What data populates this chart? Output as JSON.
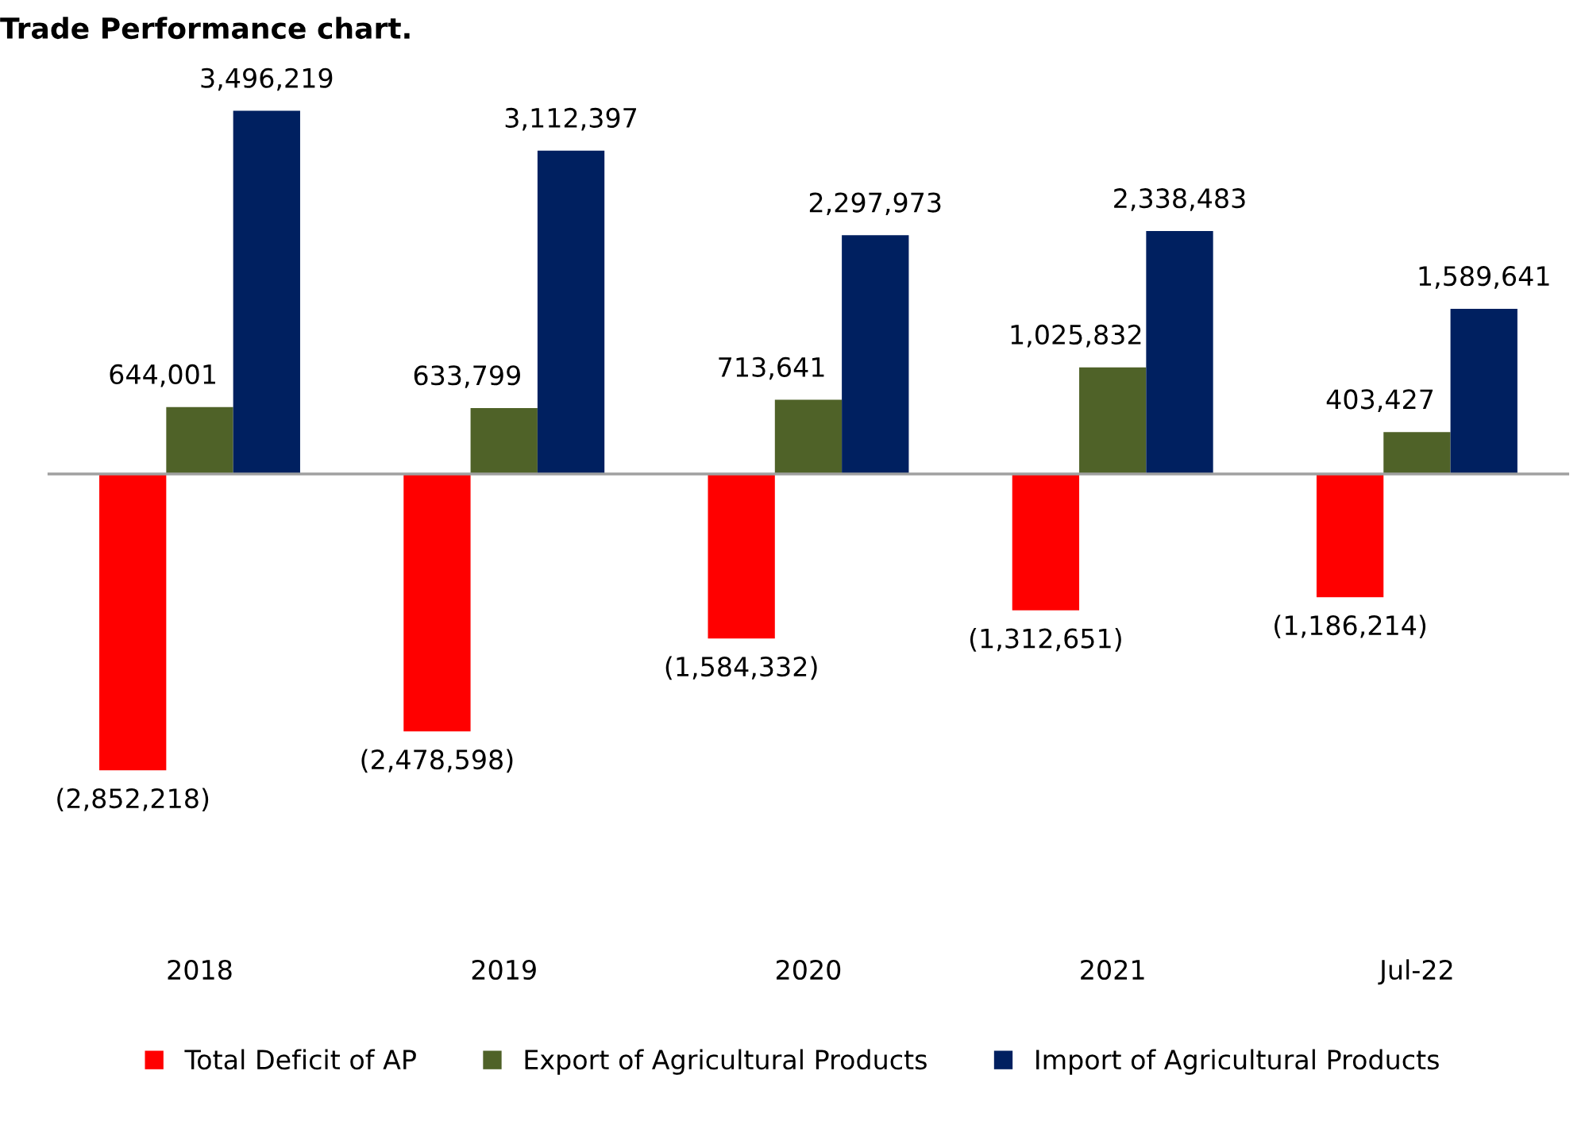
{
  "chart_data": {
    "type": "bar",
    "title": "Trade Performance chart.",
    "categories": [
      "2018",
      "2019",
      "2020",
      "2021",
      "Jul-22"
    ],
    "series": [
      {
        "name": "Total Deficit of AP",
        "color": "#ff0000",
        "values": [
          -2852218,
          -2478598,
          -1584332,
          -1312651,
          -1186214
        ],
        "value_labels": [
          "(2,852,218)",
          "(2,478,598)",
          "(1,584,332)",
          "(1,312,651)",
          "(1,186,214)"
        ]
      },
      {
        "name": "Export of Agricultural Products",
        "color": "#4f6228",
        "values": [
          644001,
          633799,
          713641,
          1025832,
          403427
        ],
        "value_labels": [
          "644,001",
          "633,799",
          "713,641",
          "1,025,832",
          "403,427"
        ]
      },
      {
        "name": "Import of Agricultural Products",
        "color": "#002060",
        "values": [
          3496219,
          3112397,
          2297973,
          2338483,
          1589641
        ],
        "value_labels": [
          "3,496,219",
          "3,112,397",
          "2,297,973",
          "2,338,483",
          "1,589,641"
        ]
      }
    ],
    "legend": "bottom"
  }
}
